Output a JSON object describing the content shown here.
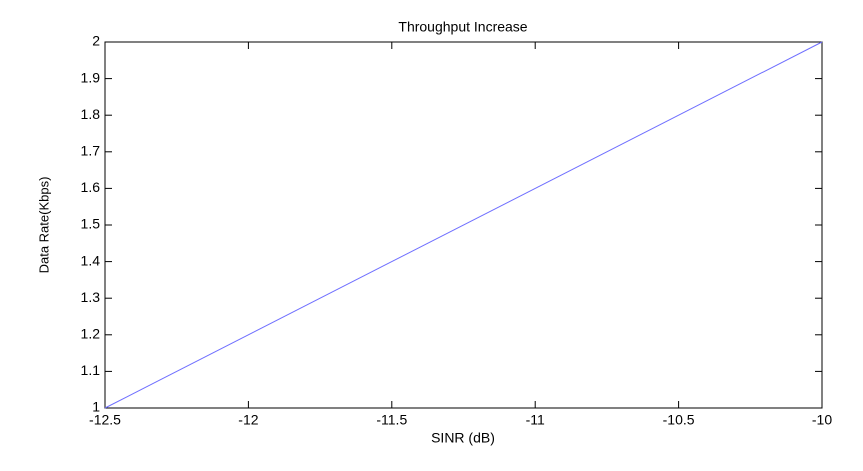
{
  "chart_data": {
    "type": "line",
    "title": "Throughput Increase",
    "x_label": "SINR (dB)",
    "y_label": "Data Rate(Kbps)",
    "x": [
      -12.5,
      -10
    ],
    "values": [
      1,
      2
    ],
    "color": "#6f6fff",
    "xlim": [
      -12.5,
      -10
    ],
    "xticks": [
      -12.5,
      -12,
      -11.5,
      -11,
      -10.5,
      -10
    ],
    "ylim": [
      1,
      2
    ],
    "yticks": [
      1,
      1.1,
      1.2,
      1.3,
      1.4,
      1.5,
      1.6,
      1.7,
      1.8,
      1.9,
      2
    ]
  }
}
